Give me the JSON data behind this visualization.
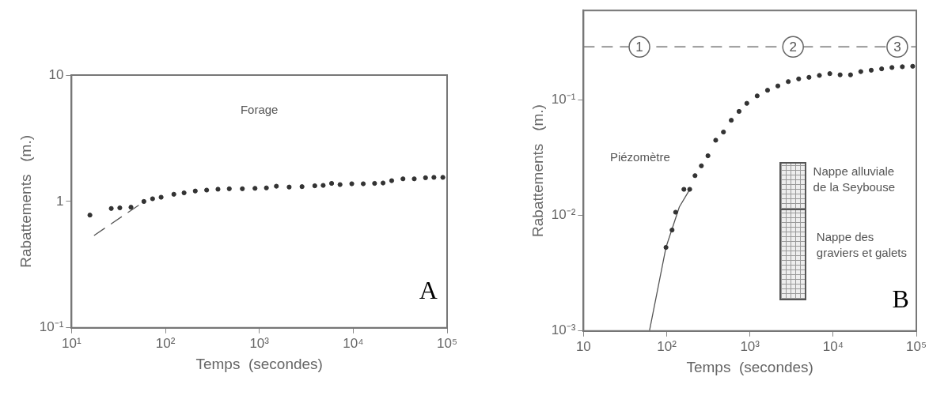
{
  "chart_data": [
    {
      "type": "scatter",
      "xlabel": "Temps  (secondes)",
      "ylabel": "Rabattements   (m.)",
      "log": "xy",
      "marker": "circle",
      "xlim": [
        10,
        100000
      ],
      "xticks": [
        {
          "value": 10,
          "label": "10¹"
        },
        {
          "value": 100,
          "label": "10²"
        },
        {
          "value": 1000,
          "label": "10³"
        },
        {
          "value": 10000,
          "label": "10⁴"
        },
        {
          "value": 100000,
          "label": "10⁵"
        }
      ],
      "ylim": [
        0.1,
        10
      ],
      "yticks": [
        {
          "value": 0.1,
          "label": "10⁻¹"
        },
        1,
        10
      ],
      "annotations": [
        "Forage",
        "A"
      ],
      "series": [
        {
          "type": "scatter",
          "color": "#333333",
          "x": [
            15.7,
            26.5,
            32.7,
            43,
            59,
            73,
            90,
            123,
            158,
            208,
            275,
            363,
            479,
            660,
            900,
            1190,
            1520,
            2080,
            2850,
            3900,
            4790,
            5890,
            7240,
            9660,
            12800,
            16900,
            20800,
            25700,
            33900,
            44700,
            58900,
            72400,
            90100
          ],
          "values": [
            0.78,
            0.88,
            0.89,
            0.9,
            1.0,
            1.05,
            1.08,
            1.14,
            1.17,
            1.21,
            1.23,
            1.25,
            1.26,
            1.26,
            1.27,
            1.28,
            1.32,
            1.3,
            1.31,
            1.33,
            1.34,
            1.39,
            1.36,
            1.38,
            1.38,
            1.39,
            1.4,
            1.46,
            1.51,
            1.51,
            1.54,
            1.55,
            1.55
          ]
        },
        {
          "type": "line",
          "color": "#555555",
          "line_style": "dashed",
          "marker": "none",
          "x": [
            17.5,
            51.5
          ],
          "values": [
            0.54,
            0.93
          ]
        }
      ]
    },
    {
      "type": "scatter",
      "xlabel": "Temps  (secondes)",
      "ylabel": "Rabattements   (m.)",
      "log": "xy",
      "marker": "circle",
      "xlim": [
        10,
        100000
      ],
      "xticks": [
        10,
        {
          "value": 100,
          "label": "10²"
        },
        {
          "value": 1000,
          "label": "10³"
        },
        {
          "value": 10000,
          "label": "10⁴"
        },
        {
          "value": 100000,
          "label": "10⁵"
        }
      ],
      "ylim": [
        0.001,
        0.6
      ],
      "yticks": [
        {
          "value": 0.001,
          "label": "10⁻³"
        },
        {
          "value": 0.01,
          "label": "10⁻²"
        },
        {
          "value": 0.1,
          "label": "10⁻¹"
        }
      ],
      "ref_lines": [
        {
          "axis": "y",
          "value": 0.29,
          "line_style": "dashed",
          "color": "#777777"
        }
      ],
      "annotations": [
        "Piézomètre",
        "Nappe alluviale de la Seybouse",
        "Nappe des graviers et galets",
        "B",
        {
          "text": "1",
          "x": 47,
          "y": 0.29
        },
        {
          "text": "2",
          "x": 3300,
          "y": 0.29
        },
        {
          "text": "3",
          "x": 59000,
          "y": 0.29
        }
      ],
      "series": [
        {
          "type": "scatter",
          "color": "#333333",
          "x": [
            98,
            116,
            128,
            161,
            189,
            219,
            261,
            313,
            388,
            481,
            597,
            740,
            918,
            1222,
            1629,
            2168,
            2891,
            3855,
            5130,
            6840,
            9120,
            12130,
            16180,
            21500,
            28700,
            38300,
            50900,
            67900,
            90400
          ],
          "values": [
            0.0053,
            0.0075,
            0.0107,
            0.0169,
            0.0169,
            0.0222,
            0.027,
            0.033,
            0.045,
            0.053,
            0.067,
            0.08,
            0.094,
            0.109,
            0.122,
            0.133,
            0.145,
            0.153,
            0.158,
            0.164,
            0.17,
            0.166,
            0.166,
            0.177,
            0.182,
            0.187,
            0.192,
            0.195,
            0.197
          ]
        },
        {
          "type": "line",
          "color": "#555555",
          "line_style": "solid",
          "marker": "none",
          "x": [
            62,
            98,
            142,
            189
          ],
          "values": [
            0.001,
            0.0053,
            0.0119,
            0.0168
          ]
        }
      ]
    }
  ]
}
